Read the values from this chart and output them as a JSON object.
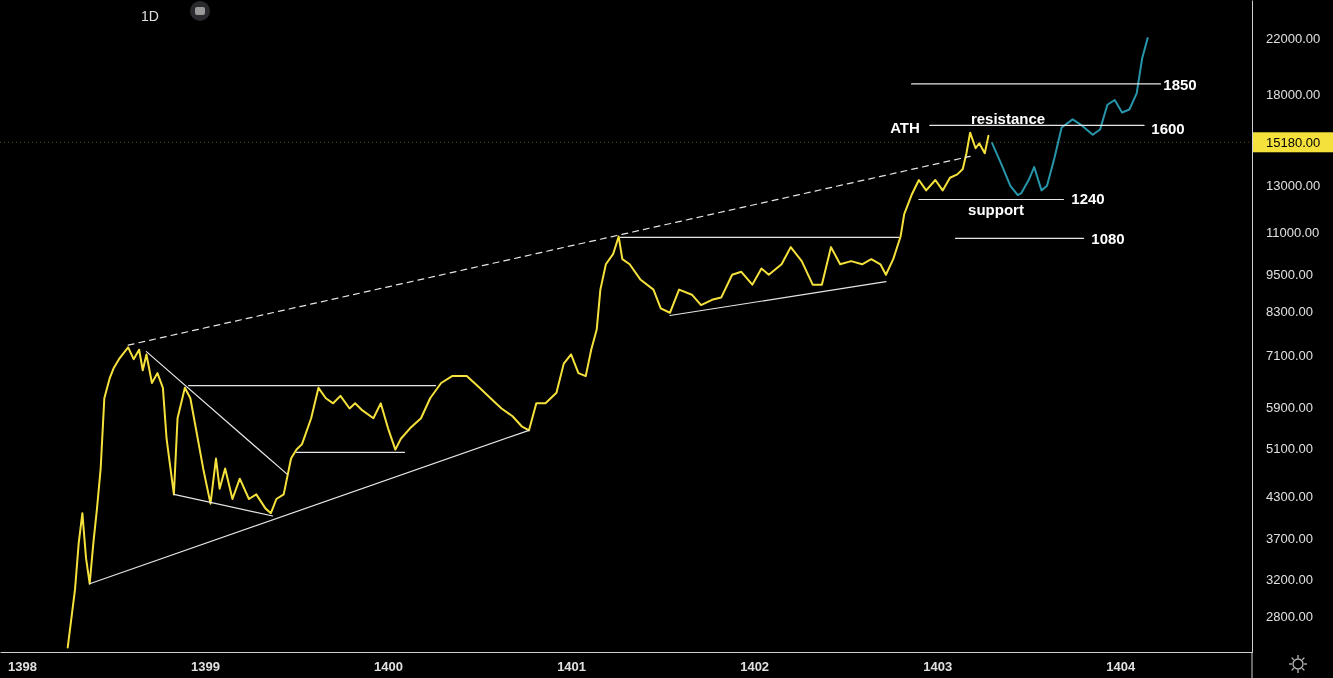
{
  "chart_data": {
    "type": "line",
    "log": "y",
    "grid": false,
    "xlim": [
      1397.88,
      1404.72
    ],
    "xticks": [
      1398,
      1399,
      1400,
      1401,
      1402,
      1403,
      1404
    ],
    "ylim": [
      2470,
      25200
    ],
    "yticks": [
      {
        "value": 2800,
        "label": "2800.00"
      },
      {
        "value": 3200,
        "label": "3200.00"
      },
      {
        "value": 3700,
        "label": "3700.00"
      },
      {
        "value": 4300,
        "label": "4300.00"
      },
      {
        "value": 5100,
        "label": "5100.00"
      },
      {
        "value": 5900,
        "label": "5900.00"
      },
      {
        "value": 7100,
        "label": "7100.00"
      },
      {
        "value": 8300,
        "label": "8300.00"
      },
      {
        "value": 9500,
        "label": "9500.00"
      },
      {
        "value": 11000,
        "label": "11000.00"
      },
      {
        "value": 13000,
        "label": "13000.00"
      },
      {
        "value": 18000,
        "label": "18000.00"
      },
      {
        "value": 22000,
        "label": "22000.00"
      }
    ],
    "ref_lines": [
      {
        "axis": "y",
        "value": 15180,
        "label": "15180.00",
        "color": "#f5e13b"
      }
    ],
    "annotations": [
      "1D",
      "ATH",
      "resistance",
      "1600",
      "1850",
      "support",
      "1240",
      "1080"
    ],
    "series": [
      {
        "color": "#f5e13b",
        "x": [
          1398.25,
          1398.29,
          1398.31,
          1398.33,
          1398.35,
          1398.37,
          1398.39,
          1398.41,
          1398.43,
          1398.45,
          1398.48,
          1398.5,
          1398.53,
          1398.55,
          1398.58,
          1398.61,
          1398.64,
          1398.66,
          1398.68,
          1398.71,
          1398.74,
          1398.77,
          1398.79,
          1398.83,
          1398.85,
          1398.89,
          1398.92,
          1398.95,
          1398.99,
          1399.03,
          1399.06,
          1399.08,
          1399.11,
          1399.15,
          1399.19,
          1399.24,
          1399.28,
          1399.33,
          1399.36,
          1399.39,
          1399.43,
          1399.47,
          1399.5,
          1399.53,
          1399.58,
          1399.62,
          1399.66,
          1399.7,
          1399.74,
          1399.79,
          1399.82,
          1399.86,
          1399.92,
          1399.96,
          1400,
          1400.04,
          1400.07,
          1400.12,
          1400.18,
          1400.23,
          1400.29,
          1400.35,
          1400.43,
          1400.5,
          1400.56,
          1400.62,
          1400.68,
          1400.73,
          1400.77,
          1400.81,
          1400.86,
          1400.92,
          1400.96,
          1401,
          1401.04,
          1401.08,
          1401.11,
          1401.14,
          1401.16,
          1401.19,
          1401.23,
          1401.26,
          1401.28,
          1401.32,
          1401.38,
          1401.45,
          1401.49,
          1401.54,
          1401.59,
          1401.66,
          1401.71,
          1401.77,
          1401.82,
          1401.88,
          1401.93,
          1401.99,
          1402.04,
          1402.08,
          1402.15,
          1402.2,
          1402.26,
          1402.32,
          1402.37,
          1402.42,
          1402.47,
          1402.53,
          1402.59,
          1402.64,
          1402.69,
          1402.72,
          1402.76,
          1402.8,
          1402.82,
          1402.86,
          1402.9,
          1402.94,
          1402.99,
          1403.03,
          1403.07,
          1403.11,
          1403.14,
          1403.16,
          1403.18,
          1403.21,
          1403.23,
          1403.26,
          1403.28
        ],
        "values": [
          2510,
          3090,
          3640,
          4050,
          3450,
          3150,
          3640,
          4120,
          4750,
          6100,
          6560,
          6780,
          7010,
          7130,
          7310,
          7010,
          7250,
          6740,
          7130,
          6440,
          6670,
          6330,
          5280,
          4330,
          5680,
          6330,
          6100,
          5480,
          4750,
          4190,
          4920,
          4420,
          4750,
          4260,
          4580,
          4260,
          4330,
          4120,
          4050,
          4260,
          4330,
          4920,
          5080,
          5180,
          5680,
          6330,
          6100,
          5990,
          6150,
          5880,
          5990,
          5840,
          5680,
          5990,
          5480,
          5080,
          5280,
          5480,
          5680,
          6100,
          6440,
          6600,
          6600,
          6330,
          6100,
          5880,
          5720,
          5520,
          5440,
          5990,
          5990,
          6220,
          6900,
          7130,
          6670,
          6600,
          7250,
          7790,
          8980,
          9830,
          10200,
          10850,
          10010,
          9830,
          9300,
          8980,
          8400,
          8270,
          8980,
          8820,
          8500,
          8660,
          8730,
          9470,
          9570,
          9140,
          9680,
          9470,
          9830,
          10450,
          9940,
          9140,
          9140,
          10450,
          9830,
          9940,
          9830,
          10010,
          9830,
          9470,
          10010,
          10850,
          11750,
          12580,
          13270,
          12790,
          13270,
          12790,
          13380,
          13540,
          13800,
          14600,
          15710,
          14860,
          15130,
          14600,
          15530
        ]
      },
      {
        "color": "#2796aa",
        "x": [
          1403.3,
          1403.35,
          1403.4,
          1403.44,
          1403.46,
          1403.5,
          1403.53,
          1403.57,
          1403.6,
          1403.64,
          1403.68,
          1403.74,
          1403.79,
          1403.85,
          1403.89,
          1403.93,
          1403.97,
          1404.01,
          1404.05,
          1404.09,
          1404.12,
          1404.15
        ],
        "values": [
          15130,
          14060,
          13000,
          12580,
          12670,
          13270,
          13900,
          12790,
          13000,
          14330,
          16000,
          16470,
          16120,
          15590,
          15890,
          17350,
          17650,
          16880,
          17060,
          18070,
          20480,
          22000
        ]
      },
      {
        "color": "#e6e6e6",
        "x": [
          1398.58,
          1403.18
        ],
        "values": [
          7370,
          14440
        ],
        "line_style": "dashed"
      },
      {
        "color": "#e6e6e6",
        "x": [
          1398.37,
          1400.77
        ],
        "values": [
          3150,
          5440
        ]
      },
      {
        "color": "#e6e6e6",
        "x": [
          1398.68,
          1399.45
        ],
        "values": [
          7200,
          4650
        ]
      },
      {
        "color": "#e6e6e6",
        "x": [
          1398.83,
          1399.37
        ],
        "values": [
          4330,
          4010
        ]
      },
      {
        "color": "#e6e6e6",
        "x": [
          1398.91,
          1400.26
        ],
        "values": [
          6380,
          6380
        ]
      },
      {
        "color": "#e6e6e6",
        "x": [
          1399.5,
          1400.09
        ],
        "values": [
          5030,
          5030
        ]
      },
      {
        "color": "#e6e6e6",
        "x": [
          1401.27,
          1402.79
        ],
        "values": [
          10820,
          10820
        ]
      },
      {
        "color": "#e6e6e6",
        "x": [
          1401.54,
          1402.72
        ],
        "values": [
          8190,
          9240
        ]
      },
      {
        "color": "#e6e6e6",
        "x": [
          1402.86,
          1404.22
        ],
        "values": [
          18690,
          18690
        ]
      },
      {
        "color": "#e6e6e6",
        "x": [
          1402.96,
          1404.13
        ],
        "values": [
          16120,
          16120
        ]
      },
      {
        "color": "#e6e6e6",
        "x": [
          1402.9,
          1403.69
        ],
        "values": [
          12380,
          12380
        ]
      },
      {
        "color": "#e6e6e6",
        "x": [
          1403.1,
          1403.8
        ],
        "values": [
          10780,
          10780
        ]
      }
    ]
  }
}
